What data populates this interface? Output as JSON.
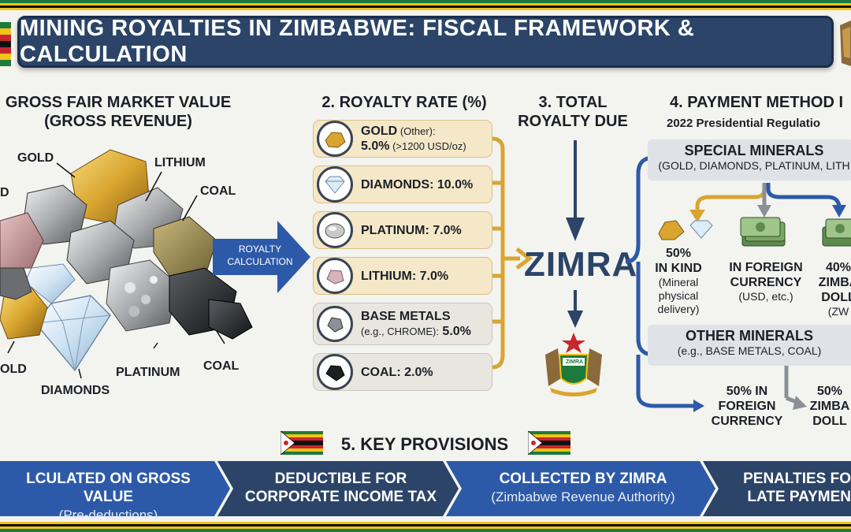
{
  "title": "MINING ROYALTIES IN ZIMBABWE: FISCAL FRAMEWORK & CALCULATION",
  "colors": {
    "navy": "#2b4468",
    "gold": "#d9a530",
    "blue": "#2d5aa8",
    "flag_green": "#1e7a3c",
    "flag_yellow": "#f2c319",
    "flag_red": "#c8262c"
  },
  "section1": {
    "heading_line1": "GROSS FAIR MARKET VALUE",
    "heading_line2": "(GROSS REVENUE)",
    "mineral_labels": {
      "gold_top": "GOLD",
      "lithium": "LITHIUM",
      "coal_top": "COAL",
      "partial_left": "D",
      "gold_bottom": "OLD",
      "diamonds": "DIAMONDS",
      "platinum": "PLATINUM",
      "coal_bottom": "COAL"
    },
    "arrow_line1": "ROYALTY",
    "arrow_line2": "CALCULATION"
  },
  "section2": {
    "heading": "2. ROYALTY RATE (%)",
    "rates": [
      {
        "line1": "GOLD",
        "line1_extra": " (Other):",
        "line2": "5.0%",
        "line2_extra": " (>1200 USD/oz)",
        "icon": "gold-nugget-icon"
      },
      {
        "line1": "DIAMONDS: 10.0%",
        "icon": "diamond-icon"
      },
      {
        "line1": "PLATINUM: 7.0%",
        "icon": "platinum-icon"
      },
      {
        "line1": "LITHIUM: 7.0%",
        "icon": "lithium-icon"
      },
      {
        "line1": "BASE METALS",
        "line2_small": "(e.g., CHROME):",
        "line2": " 5.0%",
        "icon": "base-metal-icon"
      },
      {
        "line1": "COAL: 2.0%",
        "icon": "coal-icon"
      }
    ]
  },
  "section3": {
    "heading_line1": "3. TOTAL",
    "heading_line2": "ROYALTY DUE",
    "collector": "ZIMRA",
    "emblem_text": "ZIMRA"
  },
  "section4": {
    "heading": "4. PAYMENT METHOD I",
    "subheading": "2022 Presidential Regulatio",
    "special": {
      "title": "SPECIAL MINERALS",
      "subtitle": "(GOLD, DIAMONDS, PLATINUM, LITH",
      "kind": {
        "line1": "50%",
        "line2": "IN KIND",
        "detail1": "(Mineral",
        "detail2": "physical",
        "detail3": "delivery)"
      },
      "foreign": {
        "line1": "IN FOREIGN",
        "line2": "CURRENCY",
        "detail": "(USD, etc.)"
      },
      "zwl": {
        "line1": "40%",
        "line2": "ZIMBA",
        "line3": "DOLL",
        "detail": "(ZW"
      }
    },
    "other": {
      "title": "OTHER MINERALS",
      "subtitle": "(e.g., BASE METALS, COAL)",
      "foreign": {
        "line1": "50% IN",
        "line2": "FOREIGN",
        "line3": "CURRENCY"
      },
      "zwl": {
        "line1": "50%",
        "line2": "ZIMBA",
        "line3": "DOLL"
      }
    }
  },
  "section5": {
    "heading": "5. KEY PROVISIONS",
    "provisions": [
      {
        "main": "LCULATED ON GROSS VALUE",
        "sub": "(Pre-deductions)"
      },
      {
        "main": "DEDUCTIBLE FOR",
        "main2": "CORPORATE INCOME TAX"
      },
      {
        "main": "COLLECTED BY ZIMRA",
        "sub": "(Zimbabwe Revenue Authority)"
      },
      {
        "main": "PENALTIES FO",
        "main2": "LATE PAYMEN"
      }
    ]
  }
}
